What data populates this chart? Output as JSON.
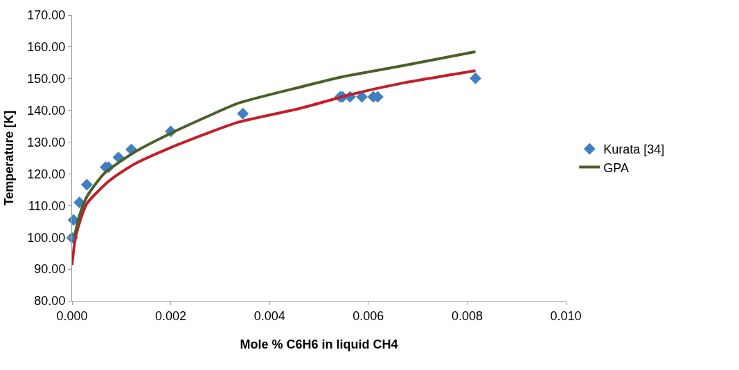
{
  "chart_data": {
    "type": "scatter",
    "xlabel": "Mole % C6H6 in liquid CH4",
    "ylabel": "Temperature [K]",
    "xlim": [
      0,
      0.01
    ],
    "ylim": [
      80,
      170
    ],
    "xticks": [
      {
        "value": 0,
        "label": "0.000"
      },
      {
        "value": 0.002,
        "label": "0.002"
      },
      {
        "value": 0.004,
        "label": "0.004"
      },
      {
        "value": 0.006,
        "label": "0.006"
      },
      {
        "value": 0.008,
        "label": "0.008"
      },
      {
        "value": 0.01,
        "label": "0.010"
      }
    ],
    "yticks": [
      {
        "value": 80,
        "label": "80.00"
      },
      {
        "value": 90,
        "label": "90.00"
      },
      {
        "value": 100,
        "label": "100.00"
      },
      {
        "value": 110,
        "label": "110.00"
      },
      {
        "value": 120,
        "label": "120.00"
      },
      {
        "value": 130,
        "label": "130.00"
      },
      {
        "value": 140,
        "label": "140.00"
      },
      {
        "value": 150,
        "label": "150.00"
      },
      {
        "value": 160,
        "label": "160.00"
      },
      {
        "value": 170,
        "label": "170.00"
      }
    ],
    "legend": "right",
    "series": [
      {
        "name": "Kurata [34]",
        "marker": "diamond",
        "color": "#4080c0",
        "x": [
          0.0,
          3e-05,
          0.00015,
          0.0003,
          0.00068,
          0.00074,
          0.00094,
          0.0012,
          0.002,
          0.00346,
          0.00543,
          0.00548,
          0.00563,
          0.00587,
          0.0061,
          0.00619,
          0.00817
        ],
        "values": [
          99.9,
          105.5,
          111.0,
          116.6,
          122.1,
          122.1,
          125.2,
          127.7,
          133.4,
          139.0,
          144.3,
          144.3,
          144.3,
          144.3,
          144.3,
          144.3,
          150.1
        ]
      },
      {
        "type": "line",
        "color": "#c0202a",
        "x": [
          0.0,
          5e-05,
          0.00012,
          0.0003,
          0.00076,
          0.00125,
          0.002,
          0.00277,
          0.00337,
          0.00463,
          0.00564,
          0.00666,
          0.00817
        ],
        "values": [
          91.3,
          98.0,
          103.0,
          110.6,
          117.9,
          123.0,
          128.3,
          133.0,
          136.3,
          140.7,
          145.0,
          148.5,
          152.5
        ]
      },
      {
        "name": "GPA",
        "type": "line",
        "color": "#4a6028",
        "x": [
          5e-05,
          0.00015,
          0.0003,
          0.00065,
          0.00126,
          0.002,
          0.00277,
          0.00337,
          0.00463,
          0.00545,
          0.00666,
          0.00817
        ],
        "values": [
          100.4,
          106.8,
          112.8,
          120.1,
          126.8,
          132.8,
          138.3,
          142.3,
          147.4,
          150.5,
          154.0,
          158.5
        ]
      }
    ]
  }
}
